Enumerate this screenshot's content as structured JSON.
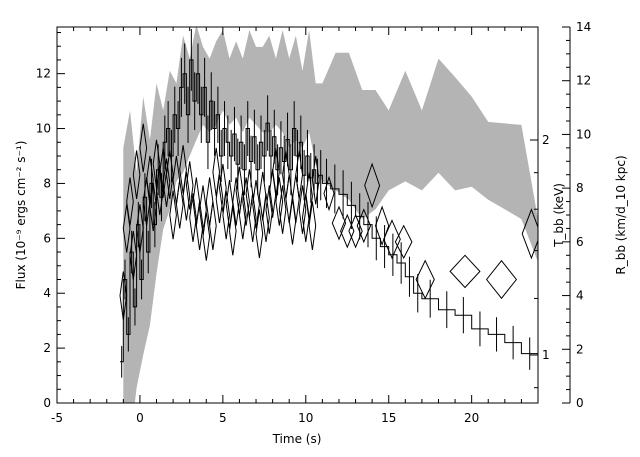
{
  "chart_data": {
    "type": "line",
    "title": "",
    "xlabel": "Time (s)",
    "ylabel_left": "Flux (10⁻⁹ ergs cm⁻² s⁻¹)",
    "ylabel_right_temp": "T_bb (keV)",
    "ylabel_right_radius": "R_bb (km/d_10 kpc)",
    "xlim": [
      -5,
      24
    ],
    "ylim_left": [
      0,
      13.7
    ],
    "ylim_right_radius": [
      0,
      14
    ],
    "temp_axis": {
      "scale": "log",
      "ticks": [
        1,
        2
      ],
      "tick_labels": [
        "1",
        "2"
      ]
    },
    "x_ticks": [
      -5,
      0,
      5,
      10,
      15,
      20
    ],
    "y_ticks_left": [
      0,
      2,
      4,
      6,
      8,
      10,
      12
    ],
    "y_ticks_right": [
      0,
      2,
      4,
      6,
      8,
      10,
      12,
      14
    ],
    "grid": false,
    "legend": "none",
    "series": [
      {
        "kind": "flux_histogram",
        "color": "#000000",
        "x_edges": [
          -1.2,
          -1.0,
          -0.8,
          -0.6,
          -0.4,
          -0.2,
          0.0,
          0.2,
          0.4,
          0.6,
          0.8,
          1.0,
          1.2,
          1.4,
          1.6,
          1.8,
          2.0,
          2.2,
          2.4,
          2.6,
          2.8,
          3.0,
          3.2,
          3.4,
          3.6,
          3.8,
          4.0,
          4.2,
          4.4,
          4.6,
          4.8,
          5.0,
          5.2,
          5.4,
          5.6,
          5.8,
          6.0,
          6.2,
          6.4,
          6.6,
          6.8,
          7.0,
          7.2,
          7.4,
          7.6,
          7.8,
          8.0,
          8.2,
          8.4,
          8.6,
          8.8,
          9.0,
          9.2,
          9.4,
          9.6,
          9.8,
          10.0,
          10.2,
          10.4,
          10.6,
          10.8,
          11.0,
          11.5,
          12.0,
          12.5,
          13.0,
          13.5,
          14.0,
          14.5,
          15.0,
          15.5,
          16.0,
          16.5,
          17.0,
          18.0,
          19.0,
          20.0,
          21.0,
          22.0,
          23.0,
          24.0
        ],
        "values": [
          1.5,
          4.5,
          2.5,
          5.5,
          3.5,
          6.5,
          4.5,
          7.5,
          5.5,
          8.0,
          6.5,
          8.5,
          7.5,
          9.5,
          10.0,
          9.0,
          10.5,
          10.0,
          11.5,
          12.0,
          10.5,
          12.5,
          11.0,
          12.0,
          10.5,
          11.5,
          9.5,
          11.0,
          10.0,
          10.5,
          9.0,
          10.0,
          9.5,
          9.0,
          9.8,
          8.7,
          9.5,
          8.5,
          10.0,
          8.8,
          9.7,
          8.5,
          9.5,
          9.0,
          10.2,
          9.0,
          9.7,
          8.5,
          9.3,
          8.8,
          9.6,
          8.5,
          10.0,
          9.0,
          9.5,
          8.3,
          9.0,
          8.2,
          8.5,
          8.0,
          8.3,
          8.0,
          7.8,
          7.6,
          7.2,
          6.8,
          6.5,
          6.0,
          5.7,
          5.4,
          5.1,
          4.6,
          4.0,
          3.8,
          3.4,
          3.2,
          2.7,
          2.5,
          2.2,
          1.8
        ]
      },
      {
        "kind": "radius_diamonds",
        "axis": "right_radius",
        "x": [
          -1.0,
          -0.8,
          -0.6,
          -0.4,
          -0.2,
          0.0,
          0.2,
          0.4,
          0.6,
          0.8,
          1.0,
          1.2,
          1.4,
          1.6,
          1.8,
          2.0,
          2.2,
          2.4,
          2.6,
          2.8,
          3.0,
          3.2,
          3.4,
          3.6,
          3.8,
          4.0,
          4.2,
          4.4,
          4.6,
          4.8,
          5.0,
          5.2,
          5.4,
          5.6,
          5.8,
          6.0,
          6.2,
          6.4,
          6.6,
          6.8,
          7.0,
          7.2,
          7.4,
          7.6,
          7.8,
          8.0,
          8.2,
          8.4,
          8.6,
          8.8,
          9.0,
          9.2,
          9.4,
          9.6,
          9.8,
          10.0,
          10.2,
          10.4,
          10.6,
          11.4,
          12.0,
          12.5,
          13.0,
          13.5,
          14.0,
          14.6,
          15.2,
          15.9,
          17.2,
          19.6,
          21.8,
          23.6
        ],
        "y": [
          4.0,
          6.5,
          7.5,
          5.5,
          8.5,
          6.5,
          9.5,
          7.5,
          8.3,
          7.3,
          8.9,
          7.9,
          8.6,
          8.2,
          8.5,
          7.0,
          8.3,
          7.4,
          8.7,
          7.7,
          8.1,
          6.9,
          7.5,
          6.6,
          7.2,
          6.2,
          7.5,
          6.6,
          8.6,
          7.6,
          8.0,
          7.0,
          7.4,
          6.4,
          7.5,
          7.9,
          7.0,
          7.5,
          7.8,
          6.9,
          7.4,
          6.3,
          7.7,
          6.9,
          7.2,
          7.8,
          8.6,
          7.5,
          7.2,
          8.5,
          7.6,
          6.8,
          7.6,
          8.5,
          7.2,
          6.9,
          7.7,
          6.6,
          8.3,
          7.8,
          6.7,
          6.4,
          6.4,
          6.6,
          8.1,
          6.6,
          6.1,
          6.0,
          4.6,
          4.9,
          4.6,
          6.3
        ],
        "half_width": [
          0.2,
          0.2,
          0.2,
          0.2,
          0.2,
          0.2,
          0.2,
          0.2,
          0.2,
          0.2,
          0.2,
          0.2,
          0.2,
          0.2,
          0.2,
          0.2,
          0.2,
          0.2,
          0.2,
          0.2,
          0.2,
          0.2,
          0.2,
          0.2,
          0.2,
          0.2,
          0.2,
          0.2,
          0.2,
          0.2,
          0.2,
          0.2,
          0.2,
          0.2,
          0.2,
          0.2,
          0.2,
          0.2,
          0.2,
          0.2,
          0.2,
          0.2,
          0.2,
          0.2,
          0.2,
          0.2,
          0.2,
          0.2,
          0.2,
          0.2,
          0.2,
          0.2,
          0.2,
          0.2,
          0.2,
          0.2,
          0.2,
          0.2,
          0.2,
          0.3,
          0.4,
          0.4,
          0.4,
          0.4,
          0.45,
          0.4,
          0.5,
          0.5,
          0.55,
          0.9,
          0.9,
          0.55
        ],
        "half_height": [
          0.9,
          0.9,
          0.9,
          0.9,
          0.9,
          0.9,
          0.9,
          0.9,
          0.9,
          0.9,
          0.9,
          0.9,
          0.9,
          0.9,
          0.9,
          0.9,
          0.9,
          0.9,
          0.9,
          0.9,
          0.9,
          0.9,
          0.9,
          0.9,
          0.9,
          0.9,
          0.9,
          0.9,
          0.9,
          0.9,
          0.9,
          0.9,
          0.9,
          0.9,
          0.9,
          0.9,
          0.9,
          0.9,
          0.9,
          0.9,
          0.9,
          0.9,
          0.9,
          0.9,
          0.9,
          0.9,
          0.9,
          0.9,
          0.9,
          0.9,
          0.9,
          0.9,
          0.9,
          0.9,
          0.9,
          0.9,
          0.9,
          0.9,
          0.9,
          0.6,
          0.6,
          0.6,
          0.6,
          0.6,
          0.8,
          0.7,
          0.7,
          0.6,
          0.7,
          0.6,
          0.7,
          0.9
        ]
      },
      {
        "kind": "temperature_band",
        "axis": "right_temp",
        "color": "#b4b4b4",
        "x": [
          -1.0,
          -0.6,
          -0.2,
          0.2,
          0.6,
          1.0,
          1.4,
          1.8,
          2.2,
          2.6,
          3.0,
          3.4,
          3.8,
          4.2,
          4.6,
          5.0,
          5.4,
          5.8,
          6.2,
          6.6,
          7.0,
          7.4,
          7.8,
          8.2,
          8.6,
          9.0,
          9.4,
          9.8,
          10.2,
          10.6,
          11.0,
          11.8,
          12.6,
          13.4,
          14.2,
          15.0,
          16.0,
          17.0,
          18.0,
          19.0,
          20.0,
          21.0,
          22.0,
          23.0,
          24.0
        ],
        "upper": [
          1.95,
          2.2,
          1.8,
          2.3,
          2.0,
          2.4,
          2.2,
          2.5,
          2.4,
          2.8,
          2.6,
          2.9,
          2.7,
          2.6,
          2.75,
          2.85,
          2.6,
          2.75,
          2.6,
          2.85,
          2.7,
          2.7,
          2.8,
          2.6,
          2.85,
          2.6,
          2.8,
          2.5,
          2.85,
          2.4,
          2.4,
          2.65,
          2.65,
          2.35,
          2.35,
          2.2,
          2.5,
          2.2,
          2.6,
          2.45,
          2.3,
          2.12,
          2.11,
          2.1,
          1.55
        ],
        "lower": [
          0.8,
          0.75,
          0.9,
          1.0,
          1.1,
          1.3,
          1.5,
          1.6,
          1.75,
          1.8,
          1.9,
          2.0,
          2.1,
          2.05,
          2.1,
          2.2,
          2.1,
          2.15,
          2.05,
          2.15,
          2.1,
          2.05,
          2.05,
          2.1,
          2.05,
          1.95,
          2.0,
          1.95,
          2.05,
          1.85,
          1.75,
          1.7,
          1.65,
          1.55,
          1.6,
          1.7,
          1.75,
          1.7,
          1.8,
          1.7,
          1.72,
          1.65,
          1.6,
          1.55,
          1.35
        ]
      }
    ]
  }
}
